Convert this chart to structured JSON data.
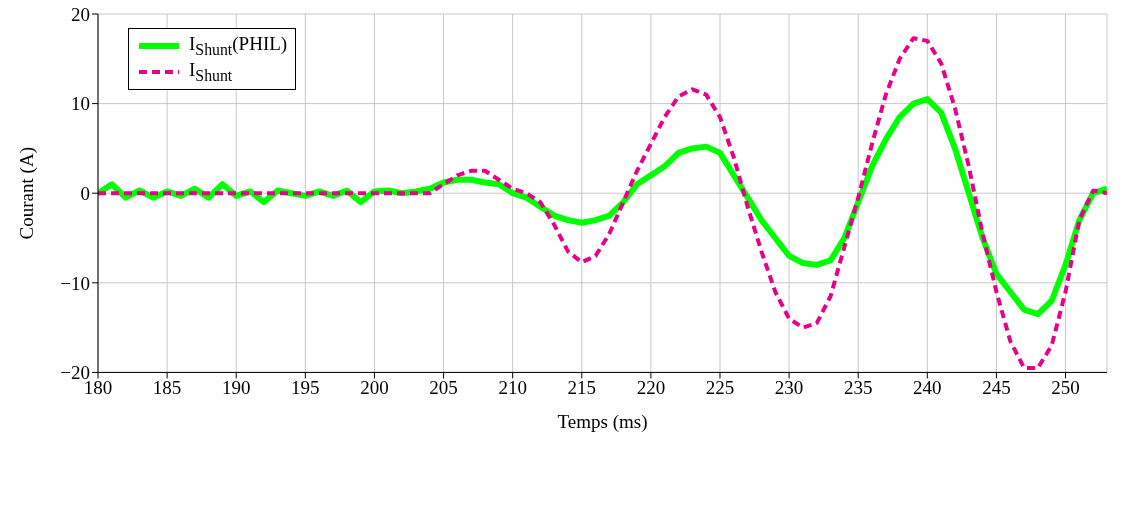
{
  "chart_data": {
    "type": "line",
    "xlabel": "Temps (ms)",
    "ylabel": "Courant (A)",
    "x": [
      180,
      181,
      182,
      183,
      184,
      185,
      186,
      187,
      188,
      189,
      190,
      191,
      192,
      193,
      194,
      195,
      196,
      197,
      198,
      199,
      200,
      201,
      202,
      203,
      204,
      205,
      206,
      207,
      208,
      209,
      210,
      211,
      212,
      213,
      214,
      215,
      216,
      217,
      218,
      219,
      220,
      221,
      222,
      223,
      224,
      225,
      226,
      227,
      228,
      229,
      230,
      231,
      232,
      233,
      234,
      235,
      236,
      237,
      238,
      239,
      240,
      241,
      242,
      243,
      244,
      245,
      246,
      247,
      248,
      249,
      250,
      251,
      252,
      253
    ],
    "series": [
      {
        "name": "I$_{Shunt}$(PHIL)",
        "color": "#00ff00",
        "line_style": "solid",
        "values": [
          0,
          1,
          -0.5,
          0.3,
          -0.5,
          0.2,
          -0.3,
          0.5,
          -0.5,
          1,
          -0.3,
          0.2,
          -1,
          0.3,
          0,
          -0.3,
          0.2,
          -0.3,
          0.3,
          -1,
          0.2,
          0.3,
          0,
          0.2,
          0.5,
          1.2,
          1.5,
          1.5,
          1.2,
          1,
          0,
          -0.5,
          -1.5,
          -2.5,
          -3,
          -3.3,
          -3,
          -2.5,
          -1,
          1,
          2,
          3,
          4.5,
          5,
          5.2,
          4.5,
          2,
          -0.5,
          -3,
          -5,
          -7,
          -7.8,
          -8,
          -7.5,
          -5,
          -1,
          3,
          6,
          8.5,
          10,
          10.5,
          9,
          5,
          0,
          -5,
          -9,
          -11,
          -13,
          -13.5,
          -12,
          -8,
          -3,
          0,
          0.5
        ]
      },
      {
        "name": "I$_{Shunt}$",
        "color": "#e6008a",
        "line_style": "dashed",
        "values": [
          0,
          0,
          0,
          0,
          0,
          0,
          0,
          0,
          0,
          0,
          0,
          0,
          0,
          0,
          0,
          0,
          0,
          0,
          0,
          0,
          0,
          0,
          0,
          0,
          0,
          1,
          2,
          2.5,
          2.5,
          1.5,
          0.5,
          0,
          -1,
          -3.5,
          -6.5,
          -7.7,
          -7,
          -4.5,
          -1,
          2.5,
          5.5,
          8.5,
          10.8,
          11.6,
          11,
          8.5,
          4,
          -1.5,
          -6.5,
          -11,
          -14,
          -15,
          -14.5,
          -11.5,
          -6,
          -0.5,
          5.5,
          11,
          15,
          17.3,
          17,
          14.5,
          9.5,
          3,
          -4.5,
          -11,
          -16.5,
          -19.5,
          -19.5,
          -17,
          -11,
          -3,
          0.3,
          0
        ]
      }
    ],
    "xlim": [
      180,
      253
    ],
    "xticks": [
      180,
      185,
      190,
      195,
      200,
      205,
      210,
      215,
      220,
      225,
      230,
      235,
      240,
      245,
      250
    ],
    "ylim": [
      -20,
      20
    ],
    "yticks": [
      {
        "value": -20,
        "label": "−20"
      },
      {
        "value": -10,
        "label": "−10"
      },
      0,
      10,
      20
    ],
    "grid": true,
    "legend": "top left",
    "marker": "none"
  }
}
